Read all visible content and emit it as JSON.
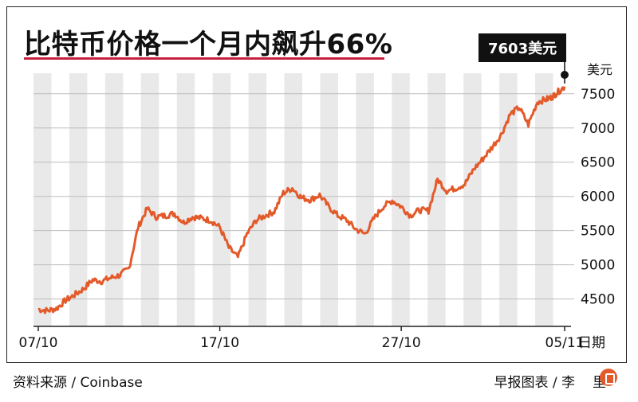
{
  "title": "比特币价格一个月内飙升66%",
  "callout": "7603美元",
  "unit_label": "美元",
  "date_label": "日期",
  "source": "资料来源 / Coinbase",
  "credit": "早报图表 / 李",
  "credit_tail": "里",
  "colors": {
    "line": "#e35a2a",
    "accent": "#c8203f",
    "stripe": "#e9e9e9",
    "grid": "#bdbdbd"
  },
  "chart_data": {
    "type": "line",
    "title": "比特币价格一个月内飙升66%",
    "xlabel": "日期",
    "ylabel": "美元",
    "y_ticks": [
      4500,
      5000,
      5500,
      6000,
      6500,
      7000,
      7500
    ],
    "x_ticks": [
      "07/10",
      "17/10",
      "27/10",
      "05/11"
    ],
    "ylim": [
      4100,
      7800
    ],
    "xlim": [
      0,
      29
    ],
    "annotation": {
      "x": 29,
      "y": 7603,
      "label": "7603美元"
    },
    "series": [
      {
        "x": [
          0,
          0.5,
          1,
          1.5,
          2,
          2.5,
          3,
          3.5,
          4,
          4.5,
          5,
          5.5,
          6,
          6.5,
          7,
          7.5,
          8,
          8.5,
          9,
          9.5,
          10,
          10.5,
          11,
          11.5,
          12,
          12.5,
          13,
          13.5,
          14,
          14.5,
          15,
          15.5,
          16,
          16.5,
          17,
          17.5,
          18,
          18.5,
          19,
          19.5,
          20,
          20.5,
          21,
          21.5,
          22,
          22.5,
          23,
          23.5,
          24,
          24.5,
          25,
          25.5,
          26,
          26.5,
          27,
          27.5,
          28,
          28.3,
          28.6,
          29
        ],
        "y": [
          4350,
          4330,
          4360,
          4480,
          4560,
          4650,
          4780,
          4760,
          4810,
          4850,
          4950,
          5550,
          5820,
          5700,
          5720,
          5750,
          5620,
          5700,
          5680,
          5650,
          5550,
          5250,
          5110,
          5450,
          5650,
          5720,
          5780,
          6050,
          6120,
          5980,
          5950,
          6020,
          5850,
          5720,
          5650,
          5520,
          5450,
          5680,
          5850,
          5940,
          5850,
          5720,
          5800,
          5790,
          6250,
          6080,
          6120,
          6180,
          6400,
          6550,
          6720,
          6900,
          7200,
          7300,
          7050,
          7380,
          7420,
          7450,
          7520,
          7603
        ]
      }
    ]
  }
}
